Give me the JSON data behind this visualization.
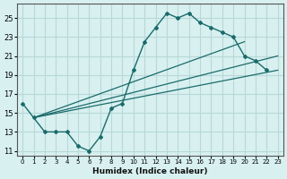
{
  "xlabel": "Humidex (Indice chaleur)",
  "bg_color": "#d8f0f0",
  "grid_color": "#b8d8d8",
  "line_color": "#1a6b6b",
  "xlim": [
    -0.5,
    23.5
  ],
  "ylim": [
    10.5,
    26.5
  ],
  "xticks": [
    0,
    1,
    2,
    3,
    4,
    5,
    6,
    7,
    8,
    9,
    10,
    11,
    12,
    13,
    14,
    15,
    16,
    17,
    18,
    19,
    20,
    21,
    22,
    23
  ],
  "yticks": [
    11,
    13,
    15,
    17,
    19,
    21,
    23,
    25
  ],
  "main_curve_x": [
    0,
    1,
    2,
    3,
    4,
    5,
    6,
    7,
    8,
    9,
    10,
    11,
    12,
    13,
    14,
    15,
    16,
    17,
    18,
    19,
    20,
    21,
    22
  ],
  "main_curve_y": [
    16.0,
    14.5,
    13.0,
    13.0,
    13.0,
    11.5,
    11.0,
    12.5,
    15.5,
    16.0,
    19.5,
    22.5,
    24.0,
    25.5,
    25.0,
    25.5,
    24.5,
    24.0,
    23.5,
    23.0,
    21.0,
    20.5,
    19.5
  ],
  "trend1_x": [
    1,
    23
  ],
  "trend1_y": [
    14.5,
    19.5
  ],
  "trend2_x": [
    1,
    20
  ],
  "trend2_y": [
    14.5,
    22.5
  ],
  "trend3_x": [
    1,
    23
  ],
  "trend3_y": [
    14.5,
    21.0
  ]
}
